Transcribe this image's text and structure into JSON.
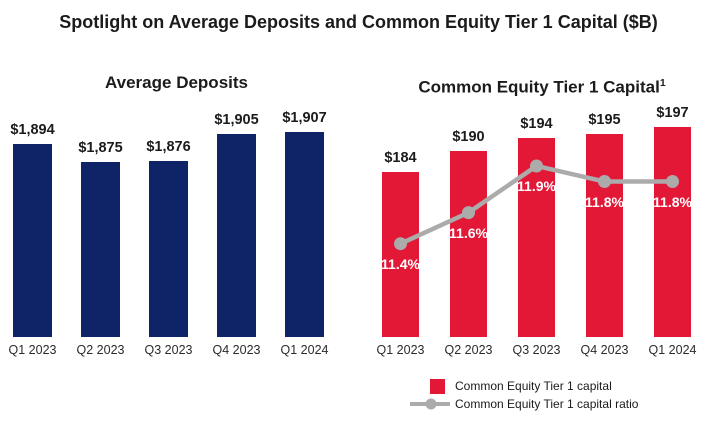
{
  "page": {
    "title": "Spotlight on Average Deposits and Common Equity Tier 1 Capital ($B)"
  },
  "colors": {
    "navy": "#0f2467",
    "red": "#e31837",
    "line_gray": "#ababab",
    "text": "#1b1b1b",
    "ratio_label_text": "#ffffff"
  },
  "chart_data": [
    {
      "type": "bar",
      "title": "Average Deposits",
      "categories": [
        "Q1 2023",
        "Q2 2023",
        "Q3 2023",
        "Q4 2023",
        "Q1 2024"
      ],
      "values": [
        1894,
        1875,
        1876,
        1905,
        1907
      ],
      "value_labels": [
        "$1,894",
        "$1,875",
        "$1,876",
        "$1,905",
        "$1,907"
      ],
      "unit": "$B",
      "ylim": [
        1690,
        1945
      ],
      "bar_color": "#0f2467",
      "grid": false,
      "legend": false
    },
    {
      "type": "bar+line",
      "title": "Common Equity Tier 1 Capital",
      "title_superscript": "1",
      "categories": [
        "Q1 2023",
        "Q2 2023",
        "Q3 2023",
        "Q4 2023",
        "Q1 2024"
      ],
      "values": [
        184,
        190,
        194,
        195,
        197
      ],
      "value_labels": [
        "$184",
        "$190",
        "$194",
        "$195",
        "$197"
      ],
      "unit": "$B",
      "ylim": [
        136.5,
        206
      ],
      "bar_color": "#e31837",
      "grid": false,
      "legend": true,
      "line": {
        "name": "Common Equity Tier 1 capital ratio",
        "values": [
          11.4,
          11.6,
          11.9,
          11.8,
          11.8
        ],
        "labels": [
          "11.4%",
          "11.6%",
          "11.9%",
          "11.8%",
          "11.8%"
        ],
        "ylim": [
          10.8,
          12.35
        ],
        "color": "#ababab"
      }
    }
  ],
  "legend": {
    "items": [
      {
        "label": "Common Equity Tier 1 capital",
        "marker": "square",
        "color": "#e31837"
      },
      {
        "label": "Common Equity Tier 1 capital ratio",
        "marker": "line-dot",
        "color": "#ababab"
      }
    ]
  }
}
